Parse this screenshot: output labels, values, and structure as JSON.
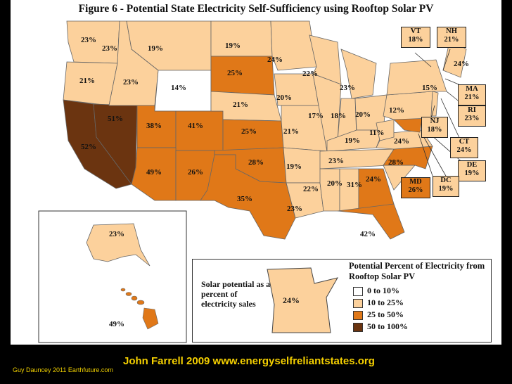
{
  "title": "Figure 6 - Potential State Electricity Self-Sufficiency using Rooftop Solar PV",
  "legend": {
    "title": "Potential Percent of Electricity from Rooftop Solar PV",
    "items": [
      {
        "label": "0 to 10%",
        "color": "#ffffff"
      },
      {
        "label": "10 to 25%",
        "color": "#fcd19c"
      },
      {
        "label": "25 to 50%",
        "color": "#e07818"
      },
      {
        "label": "50 to 100%",
        "color": "#6b3410"
      }
    ]
  },
  "inset": {
    "note": "Solar potential as a percent of electricity sales",
    "value": "24%"
  },
  "states": {
    "wa": "23%",
    "or": "21%",
    "ca": "52%",
    "nv": "51%",
    "id": "23%",
    "mt": "19%",
    "wy": "14%",
    "ut": "38%",
    "co": "41%",
    "az": "49%",
    "nm": "26%",
    "nd": "19%",
    "sd": "25%",
    "ne": "21%",
    "ks": "25%",
    "ok": "28%",
    "tx": "35%",
    "mn": "24%",
    "ia": "20%",
    "mo": "21%",
    "ar": "19%",
    "la": "23%",
    "wi": "22%",
    "il": "17%",
    "ms": "22%",
    "mi": "23%",
    "in": "18%",
    "ky": "19%",
    "tn": "23%",
    "al": "20%",
    "oh": "20%",
    "ga": "31%",
    "fl": "42%",
    "sc": "24%",
    "nc": "28%",
    "va": "24%",
    "wv": "11%",
    "pa": "12%",
    "ny": "15%",
    "me": "24%",
    "ak": "23%",
    "hi": "49%"
  },
  "callouts": [
    {
      "abbr": "VT",
      "value": "18%"
    },
    {
      "abbr": "NH",
      "value": "21%"
    },
    {
      "abbr": "MA",
      "value": "21%"
    },
    {
      "abbr": "RI",
      "value": "23%"
    },
    {
      "abbr": "CT",
      "value": "24%"
    },
    {
      "abbr": "NJ",
      "value": "18%"
    },
    {
      "abbr": "DE",
      "value": "19%"
    },
    {
      "abbr": "MD",
      "value": "26%"
    },
    {
      "abbr": "DC",
      "value": "19%"
    }
  ],
  "credit": "John Farrell 2009 www.energyselfreliantstates.org",
  "footer": "Guy Dauncey 2011 Earthfuture.com"
}
